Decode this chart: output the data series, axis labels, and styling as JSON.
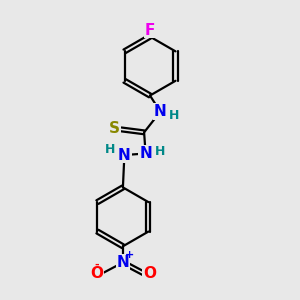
{
  "bg_color": "#e8e8e8",
  "bond_color": "#000000",
  "bond_width": 1.6,
  "atom_colors": {
    "F": "#ee00ee",
    "N": "#0000ee",
    "S": "#888800",
    "O_neg": "#ff0000",
    "O": "#ff0000",
    "H": "#008888",
    "plus": "#0000ee",
    "minus": "#ff0000"
  },
  "font_size_atom": 11,
  "font_size_h": 9,
  "font_size_charge": 8
}
